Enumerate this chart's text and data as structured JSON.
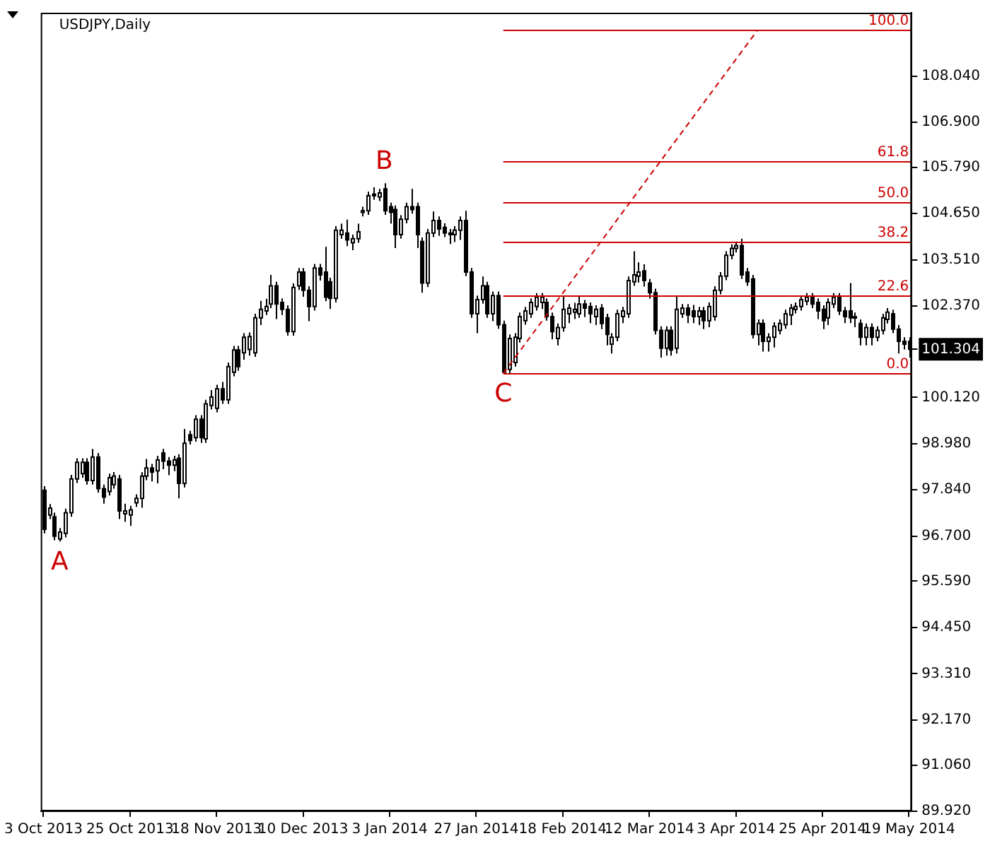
{
  "chart_data": {
    "type": "candlestick",
    "title": "USDJPY,Daily",
    "color": "#000000",
    "categories": [
      "3 Oct 2013",
      null,
      null,
      null,
      null,
      null,
      null,
      null,
      null,
      null,
      null,
      null,
      null,
      null,
      null,
      null,
      "25 Oct 2013",
      null,
      null,
      null,
      null,
      null,
      null,
      null,
      null,
      null,
      null,
      null,
      null,
      null,
      null,
      null,
      "18 Nov 2013",
      null,
      null,
      null,
      null,
      null,
      null,
      null,
      null,
      null,
      null,
      null,
      null,
      null,
      null,
      null,
      "10 Dec 2013",
      null,
      null,
      null,
      null,
      null,
      null,
      null,
      null,
      null,
      null,
      null,
      null,
      null,
      null,
      null,
      "3 Jan 2014",
      null,
      null,
      null,
      null,
      null,
      null,
      null,
      null,
      null,
      null,
      null,
      null,
      null,
      null,
      null,
      "27 Jan 2014",
      null,
      null,
      null,
      null,
      null,
      null,
      null,
      null,
      null,
      null,
      null,
      null,
      null,
      null,
      null,
      "18 Feb 2014",
      null,
      null,
      null,
      null,
      null,
      null,
      null,
      null,
      null,
      null,
      null,
      null,
      null,
      null,
      null,
      "12 Mar 2014",
      null,
      null,
      null,
      null,
      null,
      null,
      null,
      null,
      null,
      null,
      null,
      null,
      null,
      null,
      null,
      "3 Apr 2014",
      null,
      null,
      null,
      null,
      null,
      null,
      null,
      null,
      null,
      null,
      null,
      null,
      null,
      null,
      null,
      "25 Apr 2014",
      null,
      null,
      null,
      null,
      null,
      null,
      null,
      null,
      null,
      null,
      null,
      null,
      null,
      null,
      null,
      "19 May 2014"
    ],
    "ohlc": [
      [
        97.83,
        97.93,
        96.77,
        96.87
      ],
      [
        97.22,
        97.49,
        97.12,
        97.39
      ],
      [
        97.18,
        97.28,
        96.6,
        96.7
      ],
      [
        96.63,
        96.9,
        96.57,
        96.8
      ],
      [
        96.77,
        97.38,
        96.67,
        97.28
      ],
      [
        97.28,
        98.21,
        97.18,
        98.11
      ],
      [
        98.11,
        98.62,
        98.01,
        98.52
      ],
      [
        98.24,
        98.62,
        98.14,
        98.52
      ],
      [
        98.52,
        98.62,
        97.97,
        98.07
      ],
      [
        98.07,
        98.85,
        97.97,
        98.65
      ],
      [
        98.65,
        98.75,
        97.77,
        97.87
      ],
      [
        97.87,
        97.97,
        97.5,
        97.66
      ],
      [
        97.8,
        98.24,
        97.7,
        98.14
      ],
      [
        97.97,
        98.28,
        97.87,
        98.18
      ],
      [
        98.11,
        98.21,
        97.12,
        97.32
      ],
      [
        97.25,
        97.5,
        97.05,
        97.32
      ],
      [
        97.22,
        97.45,
        96.95,
        97.35
      ],
      [
        97.52,
        97.73,
        97.42,
        97.63
      ],
      [
        97.63,
        98.28,
        97.4,
        98.18
      ],
      [
        98.18,
        98.6,
        98.08,
        98.38
      ],
      [
        98.38,
        98.48,
        98.05,
        98.28
      ],
      [
        98.31,
        98.68,
        98.0,
        98.58
      ],
      [
        98.75,
        98.85,
        98.35,
        98.55
      ],
      [
        98.55,
        98.65,
        98.2,
        98.45
      ],
      [
        98.45,
        98.68,
        98.3,
        98.58
      ],
      [
        98.62,
        98.72,
        97.63,
        98.0
      ],
      [
        98.0,
        99.34,
        97.9,
        98.99
      ],
      [
        99.2,
        99.3,
        98.96,
        99.06
      ],
      [
        99.13,
        99.68,
        99.03,
        99.58
      ],
      [
        99.58,
        99.68,
        99.0,
        99.13
      ],
      [
        99.1,
        100.06,
        99.0,
        99.96
      ],
      [
        99.92,
        100.3,
        99.82,
        100.13
      ],
      [
        99.85,
        100.43,
        99.75,
        100.33
      ],
      [
        100.33,
        100.5,
        99.96,
        100.06
      ],
      [
        100.06,
        100.98,
        99.96,
        100.88
      ],
      [
        100.74,
        101.39,
        100.64,
        101.29
      ],
      [
        101.29,
        101.39,
        100.78,
        100.88
      ],
      [
        101.22,
        101.7,
        101.05,
        101.6
      ],
      [
        101.3,
        101.72,
        101.15,
        101.62
      ],
      [
        101.22,
        102.18,
        101.12,
        102.08
      ],
      [
        102.08,
        102.5,
        101.9,
        102.29
      ],
      [
        102.25,
        102.55,
        102.15,
        102.36
      ],
      [
        102.42,
        103.14,
        102.32,
        102.87
      ],
      [
        102.87,
        102.97,
        102.05,
        102.42
      ],
      [
        102.46,
        102.56,
        102.15,
        102.29
      ],
      [
        102.29,
        102.39,
        101.64,
        101.74
      ],
      [
        101.74,
        102.93,
        101.64,
        102.83
      ],
      [
        102.87,
        103.31,
        102.77,
        103.21
      ],
      [
        103.21,
        103.31,
        102.6,
        102.76
      ],
      [
        102.76,
        102.86,
        102.0,
        102.36
      ],
      [
        102.36,
        103.41,
        102.26,
        103.31
      ],
      [
        103.31,
        103.41,
        103.0,
        103.14
      ],
      [
        103.21,
        103.83,
        102.49,
        102.59
      ],
      [
        102.97,
        103.07,
        102.3,
        102.56
      ],
      [
        102.56,
        104.34,
        102.46,
        104.24
      ],
      [
        104.13,
        104.4,
        104.03,
        104.24
      ],
      [
        104.17,
        104.5,
        103.85,
        104.0
      ],
      [
        103.93,
        104.13,
        103.75,
        104.03
      ],
      [
        104.03,
        104.4,
        103.93,
        104.2
      ],
      [
        104.68,
        104.82,
        104.58,
        104.72
      ],
      [
        104.72,
        105.19,
        104.62,
        105.09
      ],
      [
        105.13,
        105.3,
        104.99,
        105.09
      ],
      [
        105.06,
        105.26,
        104.96,
        105.16
      ],
      [
        105.26,
        105.4,
        104.62,
        104.72
      ],
      [
        104.82,
        104.92,
        104.4,
        104.68
      ],
      [
        104.75,
        104.85,
        103.8,
        104.13
      ],
      [
        104.13,
        104.61,
        104.03,
        104.51
      ],
      [
        104.51,
        104.92,
        104.41,
        104.82
      ],
      [
        104.82,
        105.26,
        104.65,
        104.75
      ],
      [
        104.82,
        104.92,
        103.8,
        104.13
      ],
      [
        103.96,
        104.06,
        102.7,
        102.94
      ],
      [
        102.94,
        104.27,
        102.84,
        104.17
      ],
      [
        104.17,
        104.7,
        104.07,
        104.48
      ],
      [
        104.48,
        104.58,
        104.1,
        104.27
      ],
      [
        104.31,
        104.41,
        104.07,
        104.17
      ],
      [
        104.17,
        104.27,
        103.9,
        104.13
      ],
      [
        104.13,
        104.34,
        103.95,
        104.24
      ],
      [
        104.24,
        104.58,
        104.0,
        104.48
      ],
      [
        104.48,
        104.72,
        103.11,
        103.21
      ],
      [
        103.21,
        103.31,
        102.08,
        102.18
      ],
      [
        102.18,
        102.63,
        101.7,
        102.53
      ],
      [
        102.53,
        103.1,
        102.43,
        102.87
      ],
      [
        102.87,
        102.97,
        102.08,
        102.18
      ],
      [
        102.18,
        102.73,
        102.0,
        102.63
      ],
      [
        102.63,
        102.73,
        101.81,
        101.91
      ],
      [
        101.91,
        102.01,
        100.71,
        100.74
      ],
      [
        100.81,
        101.67,
        100.72,
        101.57
      ],
      [
        100.98,
        101.7,
        100.88,
        101.6
      ],
      [
        101.57,
        102.21,
        101.47,
        102.11
      ],
      [
        102.01,
        102.35,
        101.91,
        102.25
      ],
      [
        102.18,
        102.56,
        102.08,
        102.46
      ],
      [
        102.36,
        102.69,
        102.26,
        102.59
      ],
      [
        102.46,
        102.69,
        102.3,
        102.59
      ],
      [
        102.46,
        102.56,
        102.01,
        102.11
      ],
      [
        102.11,
        102.21,
        101.55,
        101.74
      ],
      [
        101.57,
        101.94,
        101.4,
        101.84
      ],
      [
        101.84,
        102.6,
        101.74,
        102.29
      ],
      [
        102.18,
        102.42,
        101.95,
        102.32
      ],
      [
        102.22,
        102.45,
        102.05,
        102.29
      ],
      [
        102.18,
        102.6,
        102.08,
        102.42
      ],
      [
        102.42,
        102.52,
        102.1,
        102.32
      ],
      [
        102.36,
        102.46,
        101.95,
        102.18
      ],
      [
        102.11,
        102.39,
        101.9,
        102.29
      ],
      [
        102.32,
        102.42,
        101.8,
        101.94
      ],
      [
        102.08,
        102.18,
        101.4,
        101.67
      ],
      [
        101.43,
        101.7,
        101.2,
        101.6
      ],
      [
        101.6,
        102.28,
        101.5,
        102.18
      ],
      [
        102.11,
        102.35,
        101.95,
        102.25
      ],
      [
        102.18,
        103.1,
        102.08,
        103.0
      ],
      [
        102.97,
        103.72,
        102.87,
        103.14
      ],
      [
        103.11,
        103.45,
        102.95,
        103.21
      ],
      [
        103.24,
        103.4,
        102.85,
        103.0
      ],
      [
        102.94,
        103.04,
        102.55,
        102.7
      ],
      [
        102.7,
        102.8,
        101.67,
        101.77
      ],
      [
        101.77,
        101.87,
        101.1,
        101.33
      ],
      [
        101.33,
        101.87,
        101.15,
        101.77
      ],
      [
        101.77,
        101.87,
        101.15,
        101.29
      ],
      [
        101.33,
        102.6,
        101.2,
        102.29
      ],
      [
        102.18,
        102.42,
        102.08,
        102.32
      ],
      [
        102.32,
        102.42,
        101.95,
        102.15
      ],
      [
        102.25,
        102.4,
        101.95,
        102.11
      ],
      [
        102.11,
        102.35,
        101.9,
        102.25
      ],
      [
        102.25,
        102.35,
        101.8,
        102.01
      ],
      [
        102.01,
        102.46,
        101.85,
        102.36
      ],
      [
        102.11,
        102.86,
        102.01,
        102.76
      ],
      [
        102.76,
        103.21,
        102.66,
        103.11
      ],
      [
        103.11,
        103.72,
        103.01,
        103.62
      ],
      [
        103.62,
        103.89,
        103.52,
        103.79
      ],
      [
        103.79,
        103.96,
        103.69,
        103.86
      ],
      [
        103.86,
        104.03,
        103.04,
        103.14
      ],
      [
        103.21,
        103.31,
        102.87,
        102.97
      ],
      [
        103.04,
        103.14,
        101.57,
        101.67
      ],
      [
        101.67,
        102.04,
        101.4,
        101.94
      ],
      [
        101.94,
        102.04,
        101.25,
        101.5
      ],
      [
        101.5,
        101.7,
        101.25,
        101.6
      ],
      [
        101.6,
        101.97,
        101.35,
        101.87
      ],
      [
        101.77,
        102.04,
        101.67,
        101.94
      ],
      [
        101.91,
        102.28,
        101.81,
        102.18
      ],
      [
        102.15,
        102.42,
        101.9,
        102.32
      ],
      [
        102.29,
        102.46,
        102.19,
        102.36
      ],
      [
        102.36,
        102.63,
        102.26,
        102.53
      ],
      [
        102.49,
        102.69,
        102.39,
        102.59
      ],
      [
        102.59,
        102.69,
        102.32,
        102.42
      ],
      [
        102.46,
        102.56,
        102.05,
        102.25
      ],
      [
        102.29,
        102.39,
        101.8,
        102.01
      ],
      [
        102.08,
        102.56,
        101.9,
        102.46
      ],
      [
        102.42,
        102.69,
        102.32,
        102.59
      ],
      [
        102.59,
        102.69,
        102.15,
        102.25
      ],
      [
        102.25,
        102.35,
        101.95,
        102.11
      ],
      [
        102.25,
        102.94,
        101.95,
        102.08
      ],
      [
        102.11,
        102.21,
        101.85,
        102.08
      ],
      [
        101.94,
        102.04,
        101.4,
        101.6
      ],
      [
        101.6,
        101.94,
        101.4,
        101.84
      ],
      [
        101.84,
        101.94,
        101.4,
        101.6
      ],
      [
        101.6,
        101.87,
        101.5,
        101.77
      ],
      [
        101.77,
        102.18,
        101.67,
        102.08
      ],
      [
        102.04,
        102.32,
        101.94,
        102.22
      ],
      [
        102.18,
        102.28,
        101.7,
        101.8
      ],
      [
        101.8,
        101.9,
        101.2,
        101.5
      ],
      [
        101.5,
        101.6,
        101.3,
        101.43
      ],
      [
        101.5,
        101.6,
        101.1,
        101.304
      ]
    ],
    "series": [
      {
        "type": "line",
        "color": "#cc0000",
        "line_style": "dashed",
        "values": [
          null,
          null,
          null,
          null,
          null,
          null,
          null,
          null,
          null,
          null,
          null,
          null,
          null,
          null,
          null,
          null,
          null,
          null,
          null,
          null,
          null,
          null,
          null,
          null,
          null,
          null,
          null,
          null,
          null,
          null,
          null,
          null,
          null,
          null,
          null,
          null,
          null,
          null,
          null,
          null,
          null,
          null,
          null,
          null,
          null,
          null,
          null,
          null,
          null,
          null,
          null,
          null,
          null,
          null,
          null,
          null,
          null,
          null,
          null,
          null,
          null,
          null,
          null,
          null,
          null,
          null,
          null,
          null,
          null,
          null,
          null,
          null,
          null,
          null,
          null,
          null,
          null,
          null,
          null,
          null,
          null,
          null,
          null,
          null,
          null,
          100.71,
          null,
          null,
          null,
          null,
          null,
          null,
          null,
          null,
          null,
          null,
          null,
          null,
          null,
          null,
          null,
          null,
          null,
          null,
          null,
          null,
          null,
          null,
          null,
          null,
          null,
          null,
          null,
          null,
          null,
          null,
          null,
          null,
          null,
          null,
          null,
          null,
          null,
          null,
          null,
          null,
          null,
          null,
          null,
          null,
          null,
          null,
          109.17,
          null,
          null,
          null,
          null,
          null,
          null,
          null,
          null,
          null,
          null,
          null,
          null,
          null,
          null,
          null,
          null,
          null,
          null,
          null,
          null,
          null,
          null,
          null,
          null,
          null,
          null,
          null,
          null
        ]
      }
    ],
    "ylim": [
      89.92,
      109.6
    ],
    "yticks": [
      {
        "value": 89.92,
        "label": "89.920"
      },
      {
        "value": 91.06,
        "label": "91.060"
      },
      {
        "value": 92.17,
        "label": "92.170"
      },
      {
        "value": 93.31,
        "label": "93.310"
      },
      {
        "value": 94.45,
        "label": "94.450"
      },
      {
        "value": 95.59,
        "label": "95.590"
      },
      {
        "value": 96.7,
        "label": "96.700"
      },
      {
        "value": 97.84,
        "label": "97.840"
      },
      {
        "value": 98.98,
        "label": "98.980"
      },
      {
        "value": 100.12,
        "label": "100.120"
      },
      {
        "value": 101.304,
        "label": "101.304"
      },
      {
        "value": 102.37,
        "label": "102.370"
      },
      {
        "value": 103.51,
        "label": "103.510"
      },
      {
        "value": 104.65,
        "label": "104.650"
      },
      {
        "value": 105.79,
        "label": "105.790"
      },
      {
        "value": 106.9,
        "label": "106.900"
      },
      {
        "value": 108.04,
        "label": "108.040"
      }
    ],
    "ref_lines": [
      {
        "axis": "y",
        "value": 100.71,
        "color": "#cc0000"
      },
      {
        "axis": "y",
        "value": 102.62,
        "color": "#cc0000"
      },
      {
        "axis": "y",
        "value": 103.94,
        "color": "#cc0000"
      },
      {
        "axis": "y",
        "value": 104.94,
        "color": "#cc0000"
      },
      {
        "axis": "y",
        "value": 105.94,
        "color": "#cc0000"
      },
      {
        "axis": "y",
        "value": 109.17,
        "color": "#cc0000"
      }
    ],
    "annotations": [
      {
        "text": "A",
        "y": 96.57
      },
      {
        "text": "B",
        "y": 105.4
      },
      {
        "text": "C",
        "y": 100.71
      },
      {
        "text": "0.0",
        "y": 100.71
      },
      {
        "text": "22.6",
        "y": 102.62
      },
      {
        "text": "38.2",
        "y": 103.94
      },
      {
        "text": "50.0",
        "y": 104.94
      },
      {
        "text": "61.8",
        "y": 105.94
      },
      {
        "text": "100.0",
        "y": 109.17
      }
    ]
  }
}
